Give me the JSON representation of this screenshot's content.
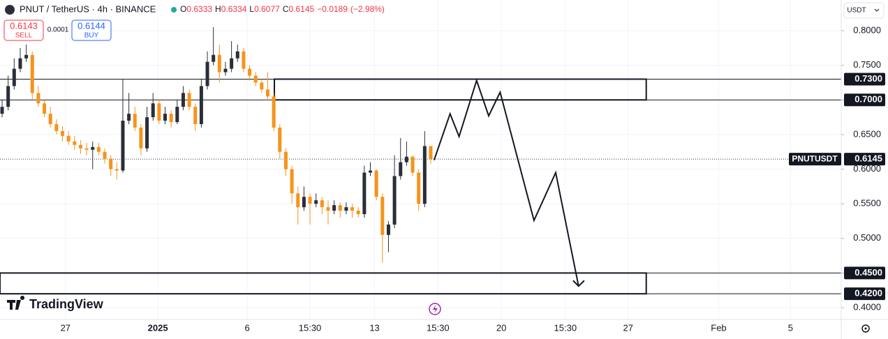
{
  "chart_data": {
    "type": "candlestick",
    "title": "PNUT / TetherUS · 4h · BINANCE",
    "ohlc_labels": [
      "O",
      "H",
      "L",
      "C"
    ],
    "change": {
      "value": -0.0189,
      "label": "−0.0189"
    },
    "change_pct": {
      "value": -2.98,
      "label": "(−2.98%)"
    },
    "sell": {
      "price": 0.6143,
      "label": "SELL"
    },
    "spread": 0.0001,
    "buy": {
      "price": 0.6144,
      "label": "BUY"
    },
    "currency": "USDT",
    "symbol": "PNUTUSDT",
    "last_price": 0.6145,
    "watermark": "TradingView",
    "up_color": "#2a2e39",
    "down_color": "#f7931a",
    "x": [
      0,
      1,
      2,
      3,
      4,
      5,
      6,
      7,
      8,
      9,
      10,
      11,
      12,
      13,
      14,
      15,
      16,
      17,
      18,
      19,
      20,
      21,
      22,
      23,
      24,
      25,
      26,
      27,
      28,
      29,
      30,
      31,
      32,
      33,
      34,
      35,
      36,
      37,
      38,
      39,
      40,
      41,
      42,
      43,
      44,
      45,
      46,
      47,
      48,
      49,
      50,
      51,
      52,
      53,
      54,
      55,
      56,
      57,
      58,
      59,
      60,
      61,
      62,
      63,
      64,
      65,
      66,
      67,
      68,
      69,
      70,
      71
    ],
    "open": [
      0.68,
      0.69,
      0.72,
      0.745,
      0.76,
      0.765,
      0.71,
      0.695,
      0.68,
      0.665,
      0.655,
      0.648,
      0.64,
      0.635,
      0.63,
      0.628,
      0.632,
      0.625,
      0.615,
      0.6,
      0.598,
      0.67,
      0.68,
      0.66,
      0.63,
      0.675,
      0.695,
      0.67,
      0.68,
      0.668,
      0.69,
      0.71,
      0.69,
      0.665,
      0.72,
      0.755,
      0.765,
      0.74,
      0.745,
      0.76,
      0.77,
      0.745,
      0.735,
      0.725,
      0.715,
      0.705,
      0.66,
      0.625,
      0.6,
      0.565,
      0.545,
      0.56,
      0.55,
      0.555,
      0.545,
      0.54,
      0.548,
      0.54,
      0.545,
      0.54,
      0.535,
      0.595,
      0.598,
      0.56,
      0.505,
      0.52,
      0.59,
      0.61,
      0.618,
      0.595,
      0.55,
      0.6333
    ],
    "high": [
      0.7,
      0.735,
      0.76,
      0.775,
      0.78,
      0.77,
      0.72,
      0.7,
      0.69,
      0.672,
      0.662,
      0.655,
      0.648,
      0.642,
      0.638,
      0.64,
      0.638,
      0.63,
      0.62,
      0.61,
      0.73,
      0.71,
      0.69,
      0.665,
      0.69,
      0.71,
      0.7,
      0.69,
      0.685,
      0.7,
      0.72,
      0.715,
      0.695,
      0.73,
      0.77,
      0.805,
      0.78,
      0.755,
      0.785,
      0.78,
      0.775,
      0.75,
      0.74,
      0.73,
      0.74,
      0.71,
      0.665,
      0.63,
      0.605,
      0.575,
      0.575,
      0.565,
      0.565,
      0.56,
      0.555,
      0.555,
      0.552,
      0.552,
      0.55,
      0.545,
      0.605,
      0.61,
      0.6,
      0.565,
      0.525,
      0.62,
      0.645,
      0.64,
      0.62,
      0.6,
      0.655,
      0.6334
    ],
    "low": [
      0.675,
      0.685,
      0.715,
      0.74,
      0.755,
      0.7,
      0.69,
      0.675,
      0.66,
      0.65,
      0.64,
      0.635,
      0.628,
      0.622,
      0.62,
      0.6,
      0.62,
      0.608,
      0.59,
      0.585,
      0.595,
      0.665,
      0.655,
      0.62,
      0.625,
      0.67,
      0.665,
      0.665,
      0.66,
      0.665,
      0.685,
      0.685,
      0.655,
      0.66,
      0.715,
      0.75,
      0.725,
      0.735,
      0.74,
      0.755,
      0.74,
      0.728,
      0.72,
      0.71,
      0.7,
      0.655,
      0.615,
      0.59,
      0.55,
      0.52,
      0.54,
      0.52,
      0.545,
      0.535,
      0.52,
      0.535,
      0.53,
      0.535,
      0.53,
      0.53,
      0.53,
      0.59,
      0.555,
      0.465,
      0.48,
      0.515,
      0.585,
      0.605,
      0.59,
      0.54,
      0.545,
      0.6077
    ],
    "close": [
      0.69,
      0.72,
      0.745,
      0.76,
      0.765,
      0.71,
      0.695,
      0.68,
      0.665,
      0.655,
      0.648,
      0.64,
      0.635,
      0.63,
      0.628,
      0.632,
      0.625,
      0.615,
      0.6,
      0.598,
      0.67,
      0.68,
      0.66,
      0.63,
      0.675,
      0.695,
      0.67,
      0.68,
      0.668,
      0.69,
      0.71,
      0.69,
      0.665,
      0.72,
      0.755,
      0.765,
      0.74,
      0.745,
      0.76,
      0.77,
      0.745,
      0.735,
      0.725,
      0.715,
      0.705,
      0.66,
      0.625,
      0.6,
      0.565,
      0.545,
      0.56,
      0.55,
      0.555,
      0.545,
      0.54,
      0.548,
      0.54,
      0.545,
      0.54,
      0.535,
      0.595,
      0.598,
      0.56,
      0.505,
      0.52,
      0.59,
      0.61,
      0.618,
      0.595,
      0.55,
      0.6333,
      0.6145
    ],
    "xlim": [
      -0.35,
      139
    ],
    "xticks": [
      {
        "value": 10.5,
        "label": "27"
      },
      {
        "value": 25.8,
        "label": "2025"
      },
      {
        "value": 40.6,
        "label": "6"
      },
      {
        "value": 51,
        "label": "15:30"
      },
      {
        "value": 61.7,
        "label": "13"
      },
      {
        "value": 72.2,
        "label": "15:30"
      },
      {
        "value": 82.7,
        "label": "20"
      },
      {
        "value": 93.3,
        "label": "15:30"
      },
      {
        "value": 103.7,
        "label": "27"
      },
      {
        "value": 118.7,
        "label": "Feb"
      },
      {
        "value": 130.6,
        "label": "5"
      }
    ],
    "ylim": [
      0.3829,
      0.8443
    ],
    "yticks": [
      {
        "value": 0.4,
        "label": "0.4000"
      },
      {
        "value": 0.45,
        "label": "0.4500"
      },
      {
        "value": 0.5,
        "label": "0.5000"
      },
      {
        "value": 0.55,
        "label": "0.5500"
      },
      {
        "value": 0.6,
        "label": "0.6000"
      },
      {
        "value": 0.65,
        "label": "0.6500"
      },
      {
        "value": 0.7,
        "label": "0.7000"
      },
      {
        "value": 0.75,
        "label": "0.7500"
      },
      {
        "value": 0.8,
        "label": "0.8000"
      }
    ],
    "grid": true,
    "levels": [
      {
        "value": 0.73,
        "label": "0.7300"
      },
      {
        "value": 0.7,
        "label": "0.7000"
      },
      {
        "value": 0.45,
        "label": "0.4500"
      },
      {
        "value": 0.42,
        "label": "0.4200"
      }
    ],
    "zones": [
      {
        "xlim": [
          45.1,
          106.7
        ],
        "ylim": [
          0.7,
          0.73
        ]
      },
      {
        "xlim": [
          -0.35,
          106.7
        ],
        "ylim": [
          0.42,
          0.45
        ]
      }
    ],
    "projection": {
      "x": [
        71.56,
        74.2,
        75.7,
        78.6,
        80.6,
        82.5,
        88.1,
        91.7,
        95.5
      ],
      "y": [
        0.613,
        0.68,
        0.647,
        0.728,
        0.677,
        0.711,
        0.526,
        0.595,
        0.431
      ]
    }
  }
}
